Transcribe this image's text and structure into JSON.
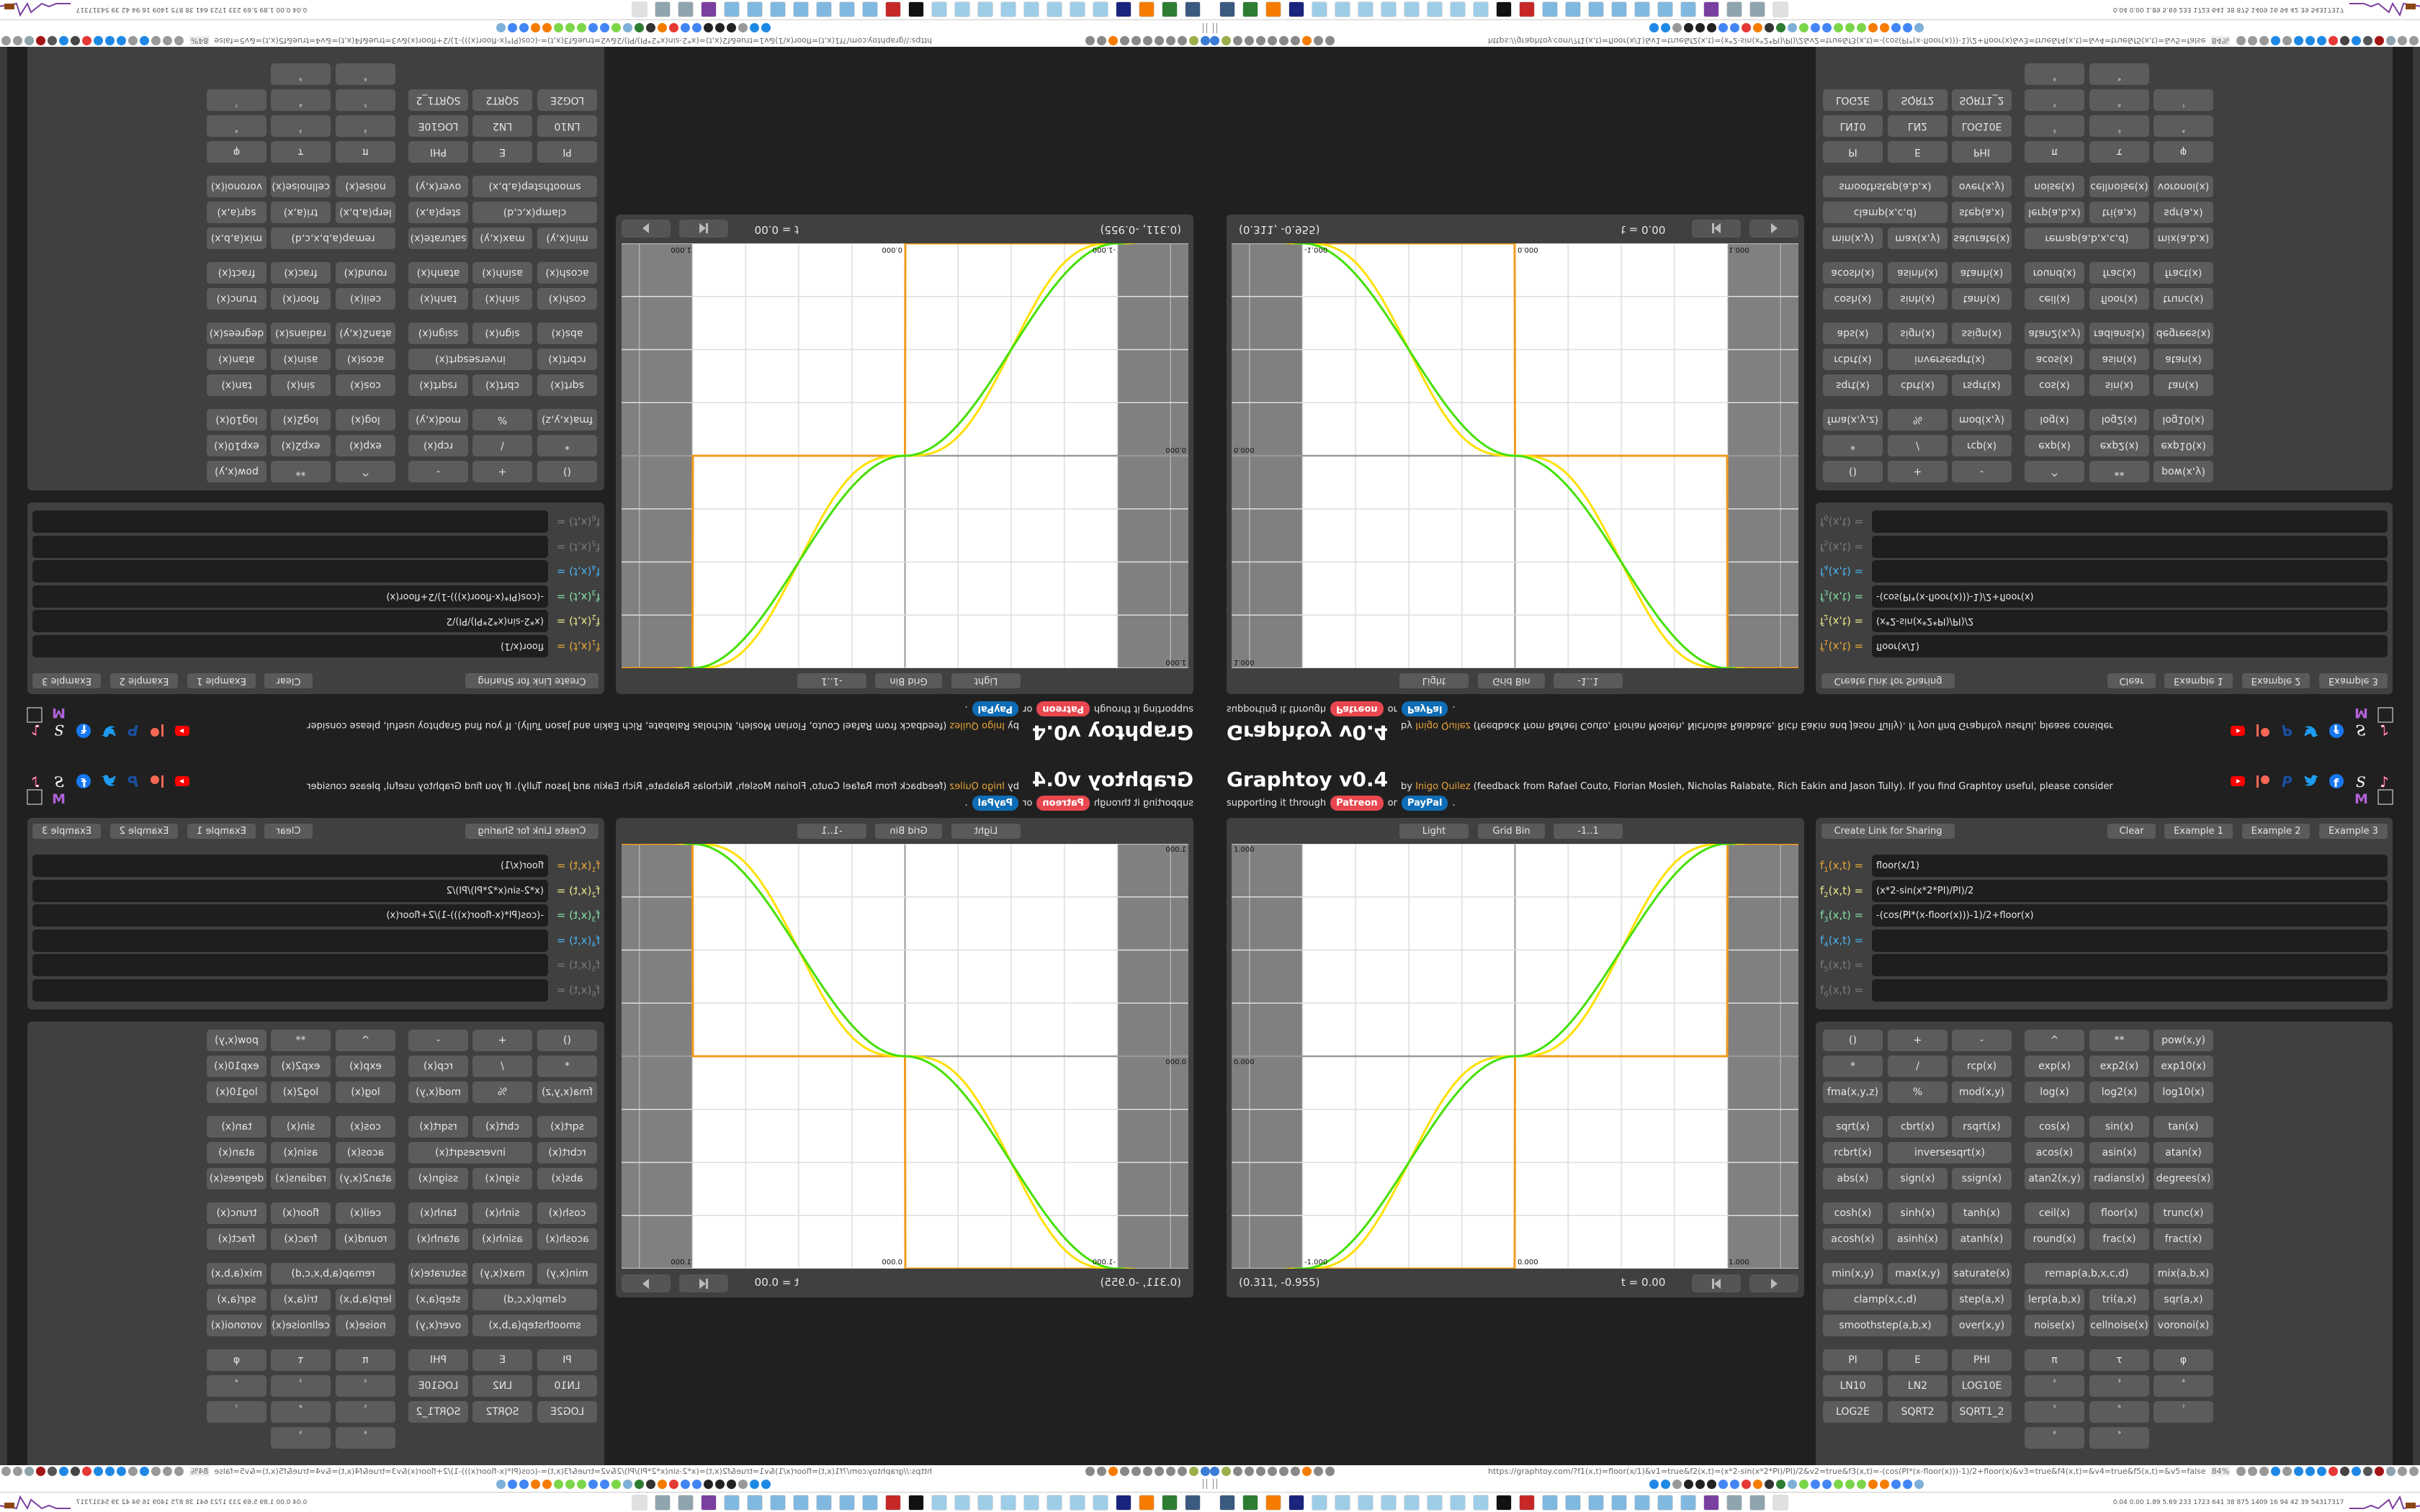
{
  "header": {
    "title": "Graphtoy v0.4",
    "by": "by",
    "author": "Inigo Quilez",
    "credits": "(feedback from Rafael Couto, Florian Mosleh, Nicholas Ralabate, Rich Eakin and Jason Tully). If you find Graphtoy useful, please consider",
    "support_prefix": "supporting it through",
    "patreon": "Patreon",
    "or": "or",
    "paypal": "PayPal",
    "period": ".",
    "author_color": "#e8a33a",
    "patreon_color": "#e9474f",
    "paypal_color": "#0e6db6"
  },
  "social": [
    {
      "name": "youtube-icon",
      "color": "#ff0000"
    },
    {
      "name": "patreon-icon",
      "color": "#f96854"
    },
    {
      "name": "paypal-icon",
      "color": "#1a4fa0"
    },
    {
      "name": "twitter-icon",
      "color": "#1d9bf0"
    },
    {
      "name": "facebook-icon",
      "color": "#1877f2"
    },
    {
      "name": "substack-icon",
      "color": "#ffffff"
    },
    {
      "name": "tiktok-icon",
      "color": "#ffffff"
    },
    {
      "name": "mastodon-icon",
      "color": "#b062d8"
    },
    {
      "name": "empty-box-icon",
      "color": "#aaaaaa"
    }
  ],
  "graph": {
    "buttons": {
      "theme": "Light",
      "grid": "Grid Bin",
      "range": "-1..1"
    },
    "x_range": [
      -1.334,
      1.334
    ],
    "y_range": [
      -1,
      1
    ],
    "grid_step": 0.25,
    "labels": {
      "y_top": "1.000",
      "y_mid": "0.000",
      "x_left": "-1.000",
      "x_mid": "0.000",
      "x_right": "1.000"
    },
    "coords": "(0.311, -0.955)",
    "time": "t = 0.00"
  },
  "formulas": {
    "buttons": {
      "share": "Create Link for Sharing",
      "clear": "Clear",
      "example1": "Example 1",
      "example2": "Example 2",
      "example3": "Example 3"
    },
    "rows": [
      {
        "f": "f",
        "sub": "1",
        "args": "(x,t) =",
        "expr": "floor(x/1)",
        "color": "#e8a838",
        "curve_color": "#f39a1e"
      },
      {
        "f": "f",
        "sub": "2",
        "args": "(x,t) =",
        "expr": "(x*2-sin(x*2*PI)/PI)/2",
        "color": "#ece78c",
        "curve_color": "#ffe000"
      },
      {
        "f": "f",
        "sub": "3",
        "args": "(x,t) =",
        "expr": "-(cos(PI*(x-floor(x)))-1)/2+floor(x)",
        "color": "#86e0a4",
        "curve_color": "#44e000"
      },
      {
        "f": "f",
        "sub": "4",
        "args": "(x,t) =",
        "expr": "",
        "color": "#4ab2ee",
        "curve_color": ""
      },
      {
        "f": "f",
        "sub": "5",
        "args": "(x,t) =",
        "expr": "",
        "color": "#7a7a7a",
        "curve_color": ""
      },
      {
        "f": "f",
        "sub": "6",
        "args": "(x,t) =",
        "expr": "",
        "color": "#7a7a7a",
        "curve_color": ""
      }
    ]
  },
  "keypad": {
    "groups": [
      [
        [
          "()",
          "+",
          "-",
          "^",
          "**",
          "pow(x,y)"
        ],
        [
          "*",
          "/",
          "rcp(x)",
          "exp(x)",
          "exp2(x)",
          "exp10(x)"
        ],
        [
          "fma(x,y,z)",
          "%",
          "mod(x,y)",
          "log(x)",
          "log2(x)",
          "log10(x)"
        ]
      ],
      [
        [
          "sqrt(x)",
          "cbrt(x)",
          "rsqrt(x)",
          "cos(x)",
          "sin(x)",
          "tan(x)"
        ],
        [
          "rcbrt(x)",
          "inversesqrt(x)",
          null,
          "acos(x)",
          "asin(x)",
          "atan(x)"
        ],
        [
          "abs(x)",
          "sign(x)",
          "ssign(x)",
          "atan2(x,y)",
          "radians(x)",
          "degrees(x)"
        ]
      ],
      [
        [
          "cosh(x)",
          "sinh(x)",
          "tanh(x)",
          "ceil(x)",
          "floor(x)",
          "trunc(x)"
        ],
        [
          "acosh(x)",
          "asinh(x)",
          "atanh(x)",
          "round(x)",
          "frac(x)",
          "fract(x)"
        ]
      ],
      [
        [
          "min(x,y)",
          "max(x,y)",
          "saturate(x)",
          "remap(a,b,x,c,d)",
          null,
          "mix(a,b,x)"
        ],
        [
          "clamp(x,c,d)",
          null,
          "step(a,x)",
          "lerp(a,b,x)",
          "tri(a,x)",
          "sqr(a,x)"
        ],
        [
          "smoothstep(a,b,x)",
          null,
          "over(x,y)",
          "noise(x)",
          "cellnoise(x)",
          "voronoi(x)"
        ]
      ],
      [
        [
          "PI",
          "E",
          "PHI",
          "π",
          "τ",
          "φ"
        ],
        [
          "LN10",
          "LN2",
          "LOG10E",
          "²",
          "³",
          "⁴"
        ],
        [
          "LOG2E",
          "SQRT2",
          "SQRT1_2",
          "⁵",
          "⁶",
          "⁷"
        ],
        [
          "",
          "",
          "",
          "⁸",
          "⁹",
          ""
        ]
      ]
    ]
  },
  "browser": {
    "url": "https://graphtoy.com/?f1(x,t)=floor(x/1)&v1=true&f2(x,t)=(x*2-sin(x*2*PI)/PI)/2&v2=true&f3(x,t)=-(cos(PI*(x-floor(x)))-1)/2+floor(x)&v3=true&f4(x,t)=&v4=true&f5(x,t)=&v5=false",
    "zoom": "84%",
    "status": "0.04 0.00 1.89 5.69 233 1723 641 38 875 1409 16 94 42 39 54317317",
    "toolbar_icons": [
      "#3a7bd5",
      "#9ab04a",
      "#888",
      "#888",
      "#888",
      "#888",
      "#888",
      "#888",
      "#f57c00",
      "#888",
      "#888"
    ],
    "extension_icons": [
      "#999",
      "#999",
      "#999",
      "#1e88e5",
      "#999",
      "#1e88e5",
      "#1e88e5",
      "#1e88e5",
      "#e53935",
      "#444",
      "#1e88e5",
      "#555",
      "#a31515",
      "#90a4ae",
      "#999",
      "#999",
      "#999",
      "#999"
    ],
    "bookmark_icons": [
      "#1e88e5",
      "#1e88e5",
      "#999",
      "#222",
      "#222",
      "#222",
      "#4285f4",
      "#4285f4",
      "#e53935",
      "#f57c00",
      "#333",
      "#2e7d32",
      "#7fb0d8",
      "#7cd64a",
      "#4285f4",
      "#4285f4",
      "#7cd64a",
      "#7cd64a",
      "#7cd64a",
      "#f57c00",
      "#f57c00",
      "#4285f4",
      "#4285f4",
      "#7fb0d8"
    ],
    "taskbar_icons": [
      "#3a5a80",
      "#2e7d32",
      "#f57c00",
      "#1a237e",
      "#9ecde8",
      "#9ecde8",
      "#9ecde8",
      "#9ecde8",
      "#9ecde8",
      "#9ecde8",
      "#9ecde8",
      "#9ecde8",
      "#111",
      "#c62828",
      "#80b8e0",
      "#80b8e0",
      "#80b8e0",
      "#80b8e0",
      "#80b8e0",
      "#80b8e0",
      "#80b8e0",
      "#7b3fa0",
      "#90a4ae",
      "#90a4ae",
      "#e0e0e0"
    ]
  }
}
